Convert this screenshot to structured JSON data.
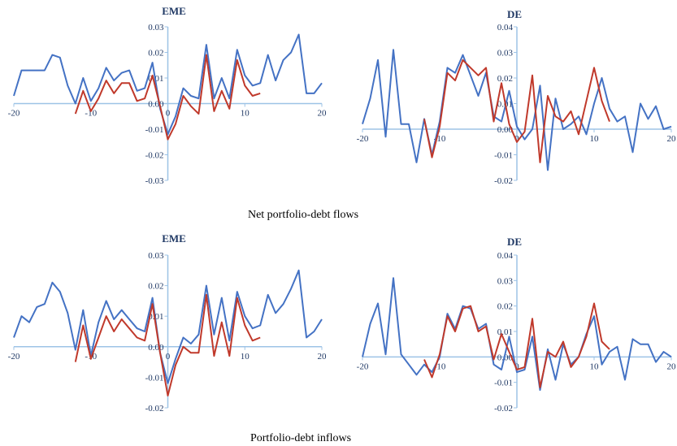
{
  "figure": {
    "captions": [
      "Net portfolio-debt flows",
      "Portfolio-debt inflows"
    ]
  },
  "colors": {
    "series_blue": "#4472c4",
    "series_red": "#c0392b",
    "axis": "#9dc3e6",
    "text": "#1f3864"
  },
  "chart_data": [
    {
      "id": "net-eme",
      "type": "line",
      "title": "EME",
      "xlabel": "",
      "ylabel": "",
      "xlim": [
        -20,
        20
      ],
      "ylim": [
        -0.03,
        0.03
      ],
      "xticks": [
        -20,
        -10,
        0,
        10,
        20
      ],
      "xtick_labels": [
        "-20",
        "-10",
        "0",
        "10",
        "20"
      ],
      "yticks": [
        -0.03,
        -0.02,
        -0.01,
        0.0,
        0.01,
        0.02,
        0.03
      ],
      "ytick_labels": [
        "-0.03",
        "-0.02",
        "-0.01",
        "0.00",
        "0.01",
        "0.02",
        "0.03"
      ],
      "grid": false,
      "series": [
        {
          "color": "#4472c4",
          "x": [
            -20,
            -19,
            -18,
            -17,
            -16,
            -15,
            -14,
            -13,
            -12,
            -11,
            -10,
            -9,
            -8,
            -7,
            -6,
            -5,
            -4,
            -3,
            -2,
            -1,
            0,
            1,
            2,
            3,
            4,
            5,
            6,
            7,
            8,
            9,
            10,
            11,
            12,
            13,
            14,
            15,
            16,
            17,
            18,
            19,
            20
          ],
          "y": [
            0.003,
            0.013,
            0.013,
            0.013,
            0.013,
            0.019,
            0.018,
            0.007,
            0.0,
            0.01,
            0.001,
            0.006,
            0.014,
            0.009,
            0.012,
            0.013,
            0.005,
            0.006,
            0.016,
            -0.002,
            -0.012,
            -0.005,
            0.006,
            0.003,
            0.002,
            0.023,
            0.002,
            0.01,
            0.002,
            0.021,
            0.011,
            0.007,
            0.008,
            0.019,
            0.009,
            0.017,
            0.02,
            0.027,
            0.004,
            0.004,
            0.008
          ]
        },
        {
          "color": "#c0392b",
          "x": [
            -12,
            -11,
            -10,
            -9,
            -8,
            -7,
            -6,
            -5,
            -4,
            -3,
            -2,
            -1,
            0,
            1,
            2,
            3,
            4,
            5,
            6,
            7,
            8,
            9,
            10,
            11,
            12
          ],
          "y": [
            -0.004,
            0.005,
            -0.003,
            0.002,
            0.009,
            0.004,
            0.008,
            0.008,
            0.001,
            0.002,
            0.011,
            -0.001,
            -0.014,
            -0.008,
            0.003,
            -0.001,
            -0.004,
            0.019,
            -0.003,
            0.005,
            -0.002,
            0.017,
            0.007,
            0.003,
            0.004
          ]
        }
      ]
    },
    {
      "id": "net-de",
      "type": "line",
      "title": "DE",
      "xlabel": "",
      "ylabel": "",
      "xlim": [
        -20,
        20
      ],
      "ylim": [
        -0.02,
        0.04
      ],
      "xticks": [
        -20,
        -10,
        0,
        10,
        20
      ],
      "xtick_labels": [
        "-20",
        "-10",
        "0",
        "10",
        "20"
      ],
      "yticks": [
        -0.02,
        -0.01,
        0.0,
        0.01,
        0.02,
        0.03,
        0.04
      ],
      "ytick_labels": [
        "-0.02",
        "-0.01",
        "0.00",
        "0.01",
        "0.02",
        "0.03",
        "0.04"
      ],
      "grid": false,
      "series": [
        {
          "color": "#4472c4",
          "x": [
            -20,
            -19,
            -18,
            -17,
            -16,
            -15,
            -14,
            -13,
            -12,
            -11,
            -10,
            -9,
            -8,
            -7,
            -6,
            -5,
            -4,
            -3,
            -2,
            -1,
            0,
            1,
            2,
            3,
            4,
            5,
            6,
            7,
            8,
            9,
            10,
            11,
            12,
            13,
            14,
            15,
            16,
            17,
            18,
            19,
            20
          ],
          "y": [
            0.002,
            0.012,
            0.027,
            -0.003,
            0.031,
            0.002,
            0.002,
            -0.013,
            0.004,
            -0.01,
            0.003,
            0.024,
            0.022,
            0.029,
            0.021,
            0.013,
            0.022,
            0.005,
            0.003,
            0.015,
            0.001,
            -0.004,
            0.0,
            0.017,
            -0.016,
            0.012,
            0.0,
            0.002,
            0.005,
            -0.002,
            0.01,
            0.02,
            0.008,
            0.003,
            0.005,
            -0.009,
            0.01,
            0.004,
            0.009,
            0.0,
            0.001
          ]
        },
        {
          "color": "#c0392b",
          "x": [
            -12,
            -11,
            -10,
            -9,
            -8,
            -7,
            -6,
            -5,
            -4,
            -3,
            -2,
            -1,
            0,
            1,
            2,
            3,
            4,
            5,
            6,
            7,
            8,
            9,
            10,
            11,
            12
          ],
          "y": [
            0.004,
            -0.011,
            0.001,
            0.022,
            0.019,
            0.027,
            0.024,
            0.021,
            0.024,
            0.003,
            0.018,
            0.002,
            -0.005,
            -0.001,
            0.021,
            -0.013,
            0.013,
            0.005,
            0.003,
            0.007,
            -0.002,
            0.011,
            0.024,
            0.011,
            0.003
          ]
        }
      ]
    },
    {
      "id": "inflow-eme",
      "type": "line",
      "title": "EME",
      "xlabel": "",
      "ylabel": "",
      "xlim": [
        -20,
        20
      ],
      "ylim": [
        -0.02,
        0.03
      ],
      "xticks": [
        -20,
        -10,
        0,
        10,
        20
      ],
      "xtick_labels": [
        "-20",
        "-10",
        "0",
        "10",
        "20"
      ],
      "yticks": [
        -0.02,
        -0.01,
        0.0,
        0.01,
        0.02,
        0.03
      ],
      "ytick_labels": [
        "-0.02",
        "-0.01",
        "0.00",
        "0.01",
        "0.02",
        "0.03"
      ],
      "grid": false,
      "series": [
        {
          "color": "#4472c4",
          "x": [
            -20,
            -19,
            -18,
            -17,
            -16,
            -15,
            -14,
            -13,
            -12,
            -11,
            -10,
            -9,
            -8,
            -7,
            -6,
            -5,
            -4,
            -3,
            -2,
            -1,
            0,
            1,
            2,
            3,
            4,
            5,
            6,
            7,
            8,
            9,
            10,
            11,
            12,
            13,
            14,
            15,
            16,
            17,
            18,
            19,
            20
          ],
          "y": [
            0.003,
            0.01,
            0.008,
            0.013,
            0.014,
            0.021,
            0.018,
            0.011,
            -0.001,
            0.012,
            -0.003,
            0.008,
            0.015,
            0.009,
            0.012,
            0.009,
            0.006,
            0.005,
            0.016,
            -0.002,
            -0.012,
            -0.004,
            0.003,
            0.001,
            0.004,
            0.02,
            0.004,
            0.016,
            0.002,
            0.018,
            0.01,
            0.006,
            0.007,
            0.017,
            0.011,
            0.014,
            0.019,
            0.025,
            0.003,
            0.005,
            0.009
          ]
        },
        {
          "color": "#c0392b",
          "x": [
            -12,
            -11,
            -10,
            -9,
            -8,
            -7,
            -6,
            -5,
            -4,
            -3,
            -2,
            -1,
            0,
            1,
            2,
            3,
            4,
            5,
            6,
            7,
            8,
            9,
            10,
            11,
            12
          ],
          "y": [
            -0.005,
            0.007,
            -0.004,
            0.003,
            0.01,
            0.005,
            0.009,
            0.006,
            0.003,
            0.002,
            0.014,
            -0.002,
            -0.016,
            -0.006,
            0.0,
            -0.002,
            -0.002,
            0.017,
            -0.003,
            0.008,
            -0.003,
            0.016,
            0.007,
            0.002,
            0.003
          ]
        }
      ]
    },
    {
      "id": "inflow-de",
      "type": "line",
      "title": "DE",
      "xlabel": "",
      "ylabel": "",
      "xlim": [
        -20,
        20
      ],
      "ylim": [
        -0.02,
        0.04
      ],
      "xticks": [
        -20,
        -10,
        0,
        10,
        20
      ],
      "xtick_labels": [
        "-20",
        "-10",
        "0",
        "10",
        "20"
      ],
      "yticks": [
        -0.02,
        -0.01,
        0.0,
        0.01,
        0.02,
        0.03,
        0.04
      ],
      "ytick_labels": [
        "-0.02",
        "-0.01",
        "0.00",
        "0.01",
        "0.02",
        "0.03",
        "0.04"
      ],
      "grid": false,
      "series": [
        {
          "color": "#4472c4",
          "x": [
            -20,
            -19,
            -18,
            -17,
            -16,
            -15,
            -14,
            -13,
            -12,
            -11,
            -10,
            -9,
            -8,
            -7,
            -6,
            -5,
            -4,
            -3,
            -2,
            -1,
            0,
            1,
            2,
            3,
            4,
            5,
            6,
            7,
            8,
            9,
            10,
            11,
            12,
            13,
            14,
            15,
            16,
            17,
            18,
            19,
            20
          ],
          "y": [
            0.0,
            0.013,
            0.021,
            0.001,
            0.031,
            0.001,
            -0.003,
            -0.007,
            -0.003,
            -0.006,
            0.0,
            0.017,
            0.011,
            0.02,
            0.019,
            0.011,
            0.013,
            -0.003,
            -0.005,
            0.008,
            -0.006,
            -0.005,
            0.008,
            -0.013,
            0.003,
            -0.009,
            0.005,
            -0.003,
            0.0,
            0.009,
            0.016,
            -0.003,
            0.002,
            0.004,
            -0.009,
            0.007,
            0.005,
            0.005,
            -0.002,
            0.002,
            0.0
          ]
        },
        {
          "color": "#c0392b",
          "x": [
            -12,
            -11,
            -10,
            -9,
            -8,
            -7,
            -6,
            -5,
            -4,
            -3,
            -2,
            -1,
            0,
            1,
            2,
            3,
            4,
            5,
            6,
            7,
            8,
            9,
            10,
            11,
            12
          ],
          "y": [
            -0.001,
            -0.008,
            0.001,
            0.016,
            0.01,
            0.019,
            0.02,
            0.01,
            0.012,
            -0.001,
            0.009,
            0.002,
            -0.005,
            -0.004,
            0.015,
            -0.012,
            0.002,
            0.0,
            0.006,
            -0.004,
            0.0,
            0.008,
            0.021,
            0.006,
            0.003
          ]
        }
      ]
    }
  ]
}
